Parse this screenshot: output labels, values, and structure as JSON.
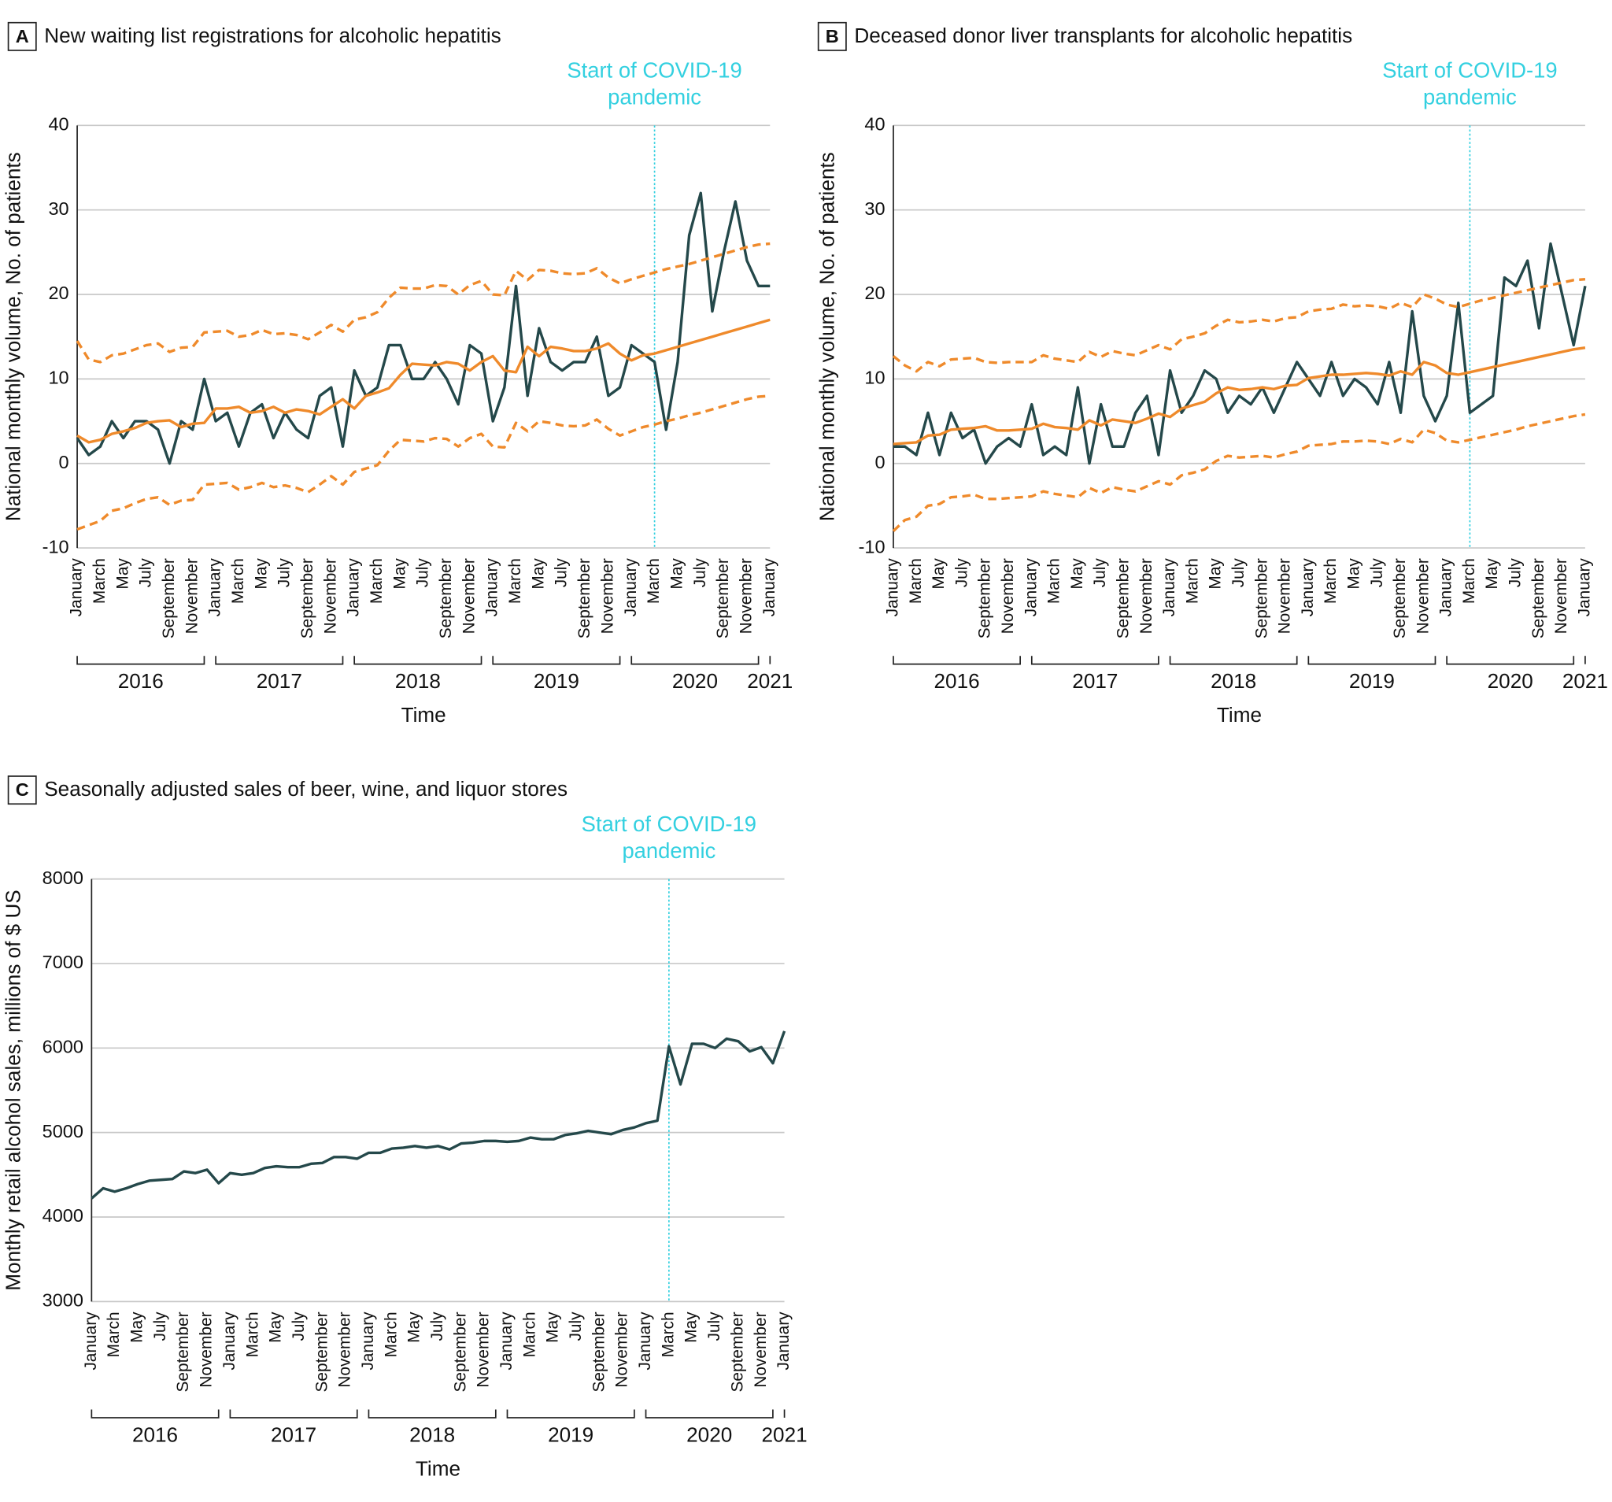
{
  "chart_data": [
    {
      "type": "line",
      "panel": "A",
      "title": "New waiting list registrations for alcoholic hepatitis",
      "ylabel": "National monthly volume, No. of patients",
      "xlabel": "Time",
      "categories": [
        "January",
        null,
        "March",
        null,
        "May",
        null,
        "July",
        null,
        "September",
        null,
        "November",
        null,
        "January",
        null,
        "March",
        null,
        "May",
        null,
        "July",
        null,
        "September",
        null,
        "November",
        null,
        "January",
        null,
        "March",
        null,
        "May",
        null,
        "July",
        null,
        "September",
        null,
        "November",
        null,
        "January",
        null,
        "March",
        null,
        "May",
        null,
        "July",
        null,
        "September",
        null,
        "November",
        null,
        "January",
        null,
        "March",
        null,
        "May",
        null,
        "July",
        null,
        "September",
        null,
        "November",
        null,
        "January"
      ],
      "years": [
        "2016",
        "2017",
        "2018",
        "2019",
        "2020",
        "2021"
      ],
      "annotation": {
        "text": [
          "Start of COVID-19",
          "pandemic"
        ],
        "at": 50,
        "color": "#33d0e0"
      },
      "ylim": [
        -10,
        40
      ],
      "yticks": [
        -10,
        0,
        10,
        20,
        30,
        40
      ],
      "grid": true,
      "series": [
        {
          "color": "#24484a",
          "values": [
            3,
            1,
            2,
            5,
            3,
            5,
            5,
            4,
            0,
            5,
            4,
            10,
            5,
            6,
            2,
            6,
            7,
            3,
            6,
            4,
            3,
            8,
            9,
            2,
            11,
            8,
            9,
            14,
            14,
            10,
            10,
            12,
            10,
            7,
            14,
            13,
            5,
            9,
            21,
            8,
            16,
            12,
            11,
            12,
            12,
            15,
            8,
            9,
            14,
            13,
            12,
            4,
            12,
            27,
            32,
            18,
            25,
            31,
            24,
            21,
            21
          ]
        },
        {
          "color": "#ef8a2b",
          "values": [
            3.3,
            2.5,
            2.8,
            3.5,
            3.8,
            4.2,
            4.8,
            5.0,
            5.1,
            4.3,
            4.7,
            4.8,
            6.5,
            6.5,
            6.7,
            6.0,
            6.2,
            6.7,
            6.0,
            6.4,
            6.2,
            5.8,
            6.7,
            7.6,
            6.5,
            8.0,
            8.4,
            8.9,
            10.5,
            11.8,
            11.7,
            11.6,
            12.0,
            11.8,
            11.0,
            12.0,
            12.7,
            11.0,
            10.8,
            13.8,
            12.7,
            13.8,
            13.6,
            13.3,
            13.3,
            13.6,
            14.2,
            13.0,
            12.2,
            12.8,
            13.0,
            13.4,
            13.8,
            14.2,
            14.6,
            15.0,
            15.4,
            15.8,
            16.2,
            16.6,
            17.0
          ]
        },
        {
          "color": "#ef8a2b",
          "dash": true,
          "values": [
            14.5,
            12.3,
            12.0,
            12.8,
            13.0,
            13.5,
            14.0,
            14.2,
            13.2,
            13.7,
            13.8,
            15.5,
            15.6,
            15.7,
            15.0,
            15.2,
            15.8,
            15.3,
            15.4,
            15.2,
            14.7,
            15.5,
            16.4,
            15.6,
            17.0,
            17.3,
            17.9,
            19.6,
            20.8,
            20.7,
            20.7,
            21.1,
            21.0,
            20.0,
            21.1,
            21.6,
            20.0,
            19.9,
            22.8,
            21.7,
            22.9,
            22.8,
            22.5,
            22.4,
            22.5,
            23.1,
            22.0,
            21.3,
            21.8,
            22.2,
            22.6,
            23.0,
            23.3,
            23.6,
            24.0,
            24.4,
            24.8,
            25.2,
            25.6,
            25.9,
            26.0
          ]
        },
        {
          "color": "#ef8a2b",
          "dash": true,
          "values": [
            -7.8,
            -7.3,
            -6.8,
            -5.6,
            -5.3,
            -4.7,
            -4.2,
            -4.0,
            -4.9,
            -4.4,
            -4.3,
            -2.5,
            -2.4,
            -2.3,
            -3.1,
            -2.8,
            -2.3,
            -2.8,
            -2.6,
            -2.9,
            -3.4,
            -2.5,
            -1.5,
            -2.5,
            -1.0,
            -0.6,
            -0.2,
            1.5,
            2.8,
            2.7,
            2.6,
            3.0,
            2.9,
            2.0,
            3.0,
            3.5,
            2.0,
            1.9,
            4.8,
            3.8,
            5.0,
            4.8,
            4.5,
            4.4,
            4.5,
            5.2,
            4.1,
            3.3,
            3.8,
            4.3,
            4.6,
            5.0,
            5.3,
            5.7,
            6.0,
            6.4,
            6.8,
            7.2,
            7.6,
            7.9,
            8.0
          ]
        }
      ]
    },
    {
      "type": "line",
      "panel": "B",
      "title": "Deceased donor liver transplants for alcoholic hepatitis",
      "ylabel": "National monthly volume, No. of patients",
      "xlabel": "Time",
      "categories": [
        "January",
        null,
        "March",
        null,
        "May",
        null,
        "July",
        null,
        "September",
        null,
        "November",
        null,
        "January",
        null,
        "March",
        null,
        "May",
        null,
        "July",
        null,
        "September",
        null,
        "November",
        null,
        "January",
        null,
        "March",
        null,
        "May",
        null,
        "July",
        null,
        "September",
        null,
        "November",
        null,
        "January",
        null,
        "March",
        null,
        "May",
        null,
        "July",
        null,
        "September",
        null,
        "November",
        null,
        "January",
        null,
        "March",
        null,
        "May",
        null,
        "July",
        null,
        "September",
        null,
        "November",
        null,
        "January"
      ],
      "years": [
        "2016",
        "2017",
        "2018",
        "2019",
        "2020",
        "2021"
      ],
      "annotation": {
        "text": [
          "Start of COVID-19",
          "pandemic"
        ],
        "at": 50,
        "color": "#33d0e0"
      },
      "ylim": [
        -10,
        40
      ],
      "yticks": [
        -10,
        0,
        10,
        20,
        30,
        40
      ],
      "grid": true,
      "series": [
        {
          "color": "#24484a",
          "values": [
            2,
            2,
            1,
            6,
            1,
            6,
            3,
            4,
            0,
            2,
            3,
            2,
            7,
            1,
            2,
            1,
            9,
            0,
            7,
            2,
            2,
            6,
            8,
            1,
            11,
            6,
            8,
            11,
            10,
            6,
            8,
            7,
            9,
            6,
            9,
            12,
            10,
            8,
            12,
            8,
            10,
            9,
            7,
            12,
            6,
            18,
            8,
            5,
            8,
            19,
            6,
            7,
            8,
            22,
            21,
            24,
            16,
            26,
            20,
            14,
            21
          ]
        },
        {
          "color": "#ef8a2b",
          "values": [
            2.3,
            2.4,
            2.5,
            3.3,
            3.4,
            4.0,
            4.1,
            4.2,
            4.4,
            3.9,
            3.9,
            4.0,
            4.1,
            4.7,
            4.3,
            4.2,
            4.0,
            5.1,
            4.5,
            5.2,
            5.0,
            4.8,
            5.3,
            5.9,
            5.5,
            6.5,
            6.9,
            7.3,
            8.3,
            9.0,
            8.7,
            8.8,
            9.0,
            8.8,
            9.2,
            9.3,
            10.1,
            10.3,
            10.5,
            10.5,
            10.6,
            10.7,
            10.6,
            10.4,
            10.9,
            10.5,
            12.0,
            11.6,
            10.7,
            10.5,
            10.8,
            11.1,
            11.4,
            11.7,
            12.0,
            12.3,
            12.6,
            12.9,
            13.2,
            13.5,
            13.7
          ]
        },
        {
          "color": "#ef8a2b",
          "dash": true,
          "values": [
            12.7,
            11.6,
            10.9,
            12.0,
            11.5,
            12.3,
            12.4,
            12.5,
            12.0,
            11.9,
            12.0,
            12.0,
            12.0,
            12.8,
            12.4,
            12.2,
            12.0,
            13.2,
            12.6,
            13.3,
            13.0,
            12.8,
            13.4,
            14.0,
            13.5,
            14.7,
            15.0,
            15.4,
            16.3,
            17.0,
            16.7,
            16.8,
            17.0,
            16.8,
            17.2,
            17.3,
            18.0,
            18.2,
            18.3,
            18.8,
            18.6,
            18.7,
            18.6,
            18.3,
            19.0,
            18.5,
            20.0,
            19.5,
            18.8,
            18.5,
            18.9,
            19.3,
            19.6,
            19.9,
            20.2,
            20.5,
            20.8,
            21.1,
            21.4,
            21.7,
            21.8
          ]
        },
        {
          "color": "#ef8a2b",
          "dash": true,
          "values": [
            -8.0,
            -6.7,
            -6.3,
            -5.0,
            -4.8,
            -4.0,
            -3.9,
            -3.7,
            -4.2,
            -4.2,
            -4.1,
            -4.0,
            -3.9,
            -3.3,
            -3.6,
            -3.8,
            -4.0,
            -2.9,
            -3.5,
            -2.8,
            -3.1,
            -3.3,
            -2.7,
            -2.1,
            -2.5,
            -1.4,
            -1.1,
            -0.7,
            0.3,
            0.9,
            0.7,
            0.8,
            0.9,
            0.7,
            1.1,
            1.4,
            2.1,
            2.2,
            2.3,
            2.6,
            2.6,
            2.7,
            2.6,
            2.3,
            2.9,
            2.5,
            4.0,
            3.6,
            2.7,
            2.5,
            2.8,
            3.1,
            3.4,
            3.7,
            4.0,
            4.4,
            4.7,
            5.0,
            5.3,
            5.6,
            5.8
          ]
        }
      ]
    },
    {
      "type": "line",
      "panel": "C",
      "title": "Seasonally adjusted sales of beer, wine, and liquor stores",
      "ylabel": "Monthly retail alcohol sales, millions of $ US",
      "xlabel": "Time",
      "categories": [
        "January",
        null,
        "March",
        null,
        "May",
        null,
        "July",
        null,
        "September",
        null,
        "November",
        null,
        "January",
        null,
        "March",
        null,
        "May",
        null,
        "July",
        null,
        "September",
        null,
        "November",
        null,
        "January",
        null,
        "March",
        null,
        "May",
        null,
        "July",
        null,
        "September",
        null,
        "November",
        null,
        "January",
        null,
        "March",
        null,
        "May",
        null,
        "July",
        null,
        "September",
        null,
        "November",
        null,
        "January",
        null,
        "March",
        null,
        "May",
        null,
        "July",
        null,
        "September",
        null,
        "November",
        null,
        "January"
      ],
      "years": [
        "2016",
        "2017",
        "2018",
        "2019",
        "2020",
        "2021"
      ],
      "annotation": {
        "text": [
          "Start of COVID-19",
          "pandemic"
        ],
        "at": 50,
        "color": "#33d0e0"
      },
      "ylim": [
        3000,
        8000
      ],
      "yticks": [
        3000,
        4000,
        5000,
        6000,
        7000,
        8000
      ],
      "grid": true,
      "series": [
        {
          "color": "#24484a",
          "values": [
            4220,
            4340,
            4300,
            4340,
            4390,
            4430,
            4440,
            4450,
            4540,
            4520,
            4560,
            4400,
            4520,
            4500,
            4520,
            4580,
            4600,
            4590,
            4590,
            4630,
            4640,
            4710,
            4710,
            4690,
            4760,
            4760,
            4810,
            4820,
            4840,
            4820,
            4840,
            4800,
            4870,
            4880,
            4900,
            4900,
            4890,
            4900,
            4940,
            4920,
            4920,
            4970,
            4990,
            5020,
            5000,
            4980,
            5030,
            5060,
            5110,
            5140,
            6020,
            5570,
            6050,
            6050,
            6000,
            6110,
            6080,
            5960,
            6010,
            5820,
            6200
          ]
        }
      ]
    }
  ]
}
